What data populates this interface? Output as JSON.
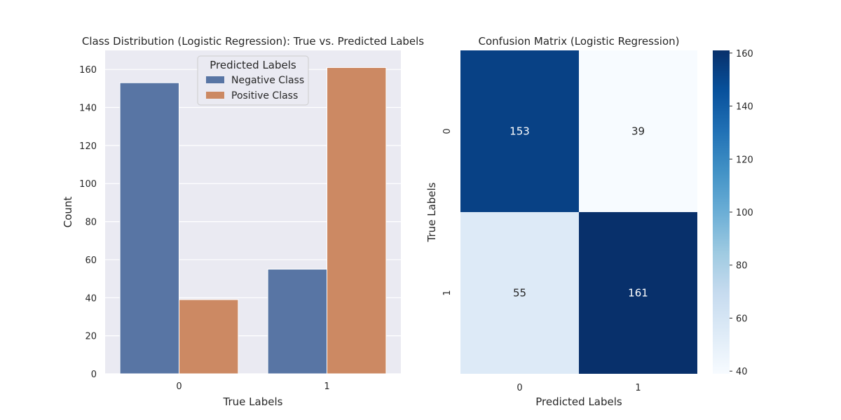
{
  "chart_data": [
    {
      "type": "bar",
      "title": "Class Distribution (Logistic Regression): True vs. Predicted Labels",
      "xlabel": "True Labels",
      "ylabel": "Count",
      "categories": [
        "0",
        "1"
      ],
      "series": [
        {
          "name": "Negative Class",
          "values": [
            153,
            55
          ],
          "color": "#5875a4"
        },
        {
          "name": "Positive Class",
          "values": [
            39,
            161
          ],
          "color": "#cc8963"
        }
      ],
      "ylim": [
        0,
        170
      ],
      "yticks": [
        0,
        20,
        40,
        60,
        80,
        100,
        120,
        140,
        160
      ],
      "grid": true,
      "background": "#eaeaf2",
      "legend": {
        "title": "Predicted Labels",
        "placement": "upper center"
      }
    },
    {
      "type": "heatmap",
      "title": "Confusion Matrix (Logistic Regression)",
      "xlabel": "Predicted Labels",
      "ylabel": "True Labels",
      "x_categories": [
        "0",
        "1"
      ],
      "y_categories": [
        "0",
        "1"
      ],
      "values": [
        [
          153,
          39
        ],
        [
          55,
          161
        ]
      ],
      "colormap": "Blues",
      "colorbar": {
        "min": 39,
        "max": 161,
        "ticks": [
          40,
          60,
          80,
          100,
          120,
          140,
          160
        ]
      }
    }
  ]
}
